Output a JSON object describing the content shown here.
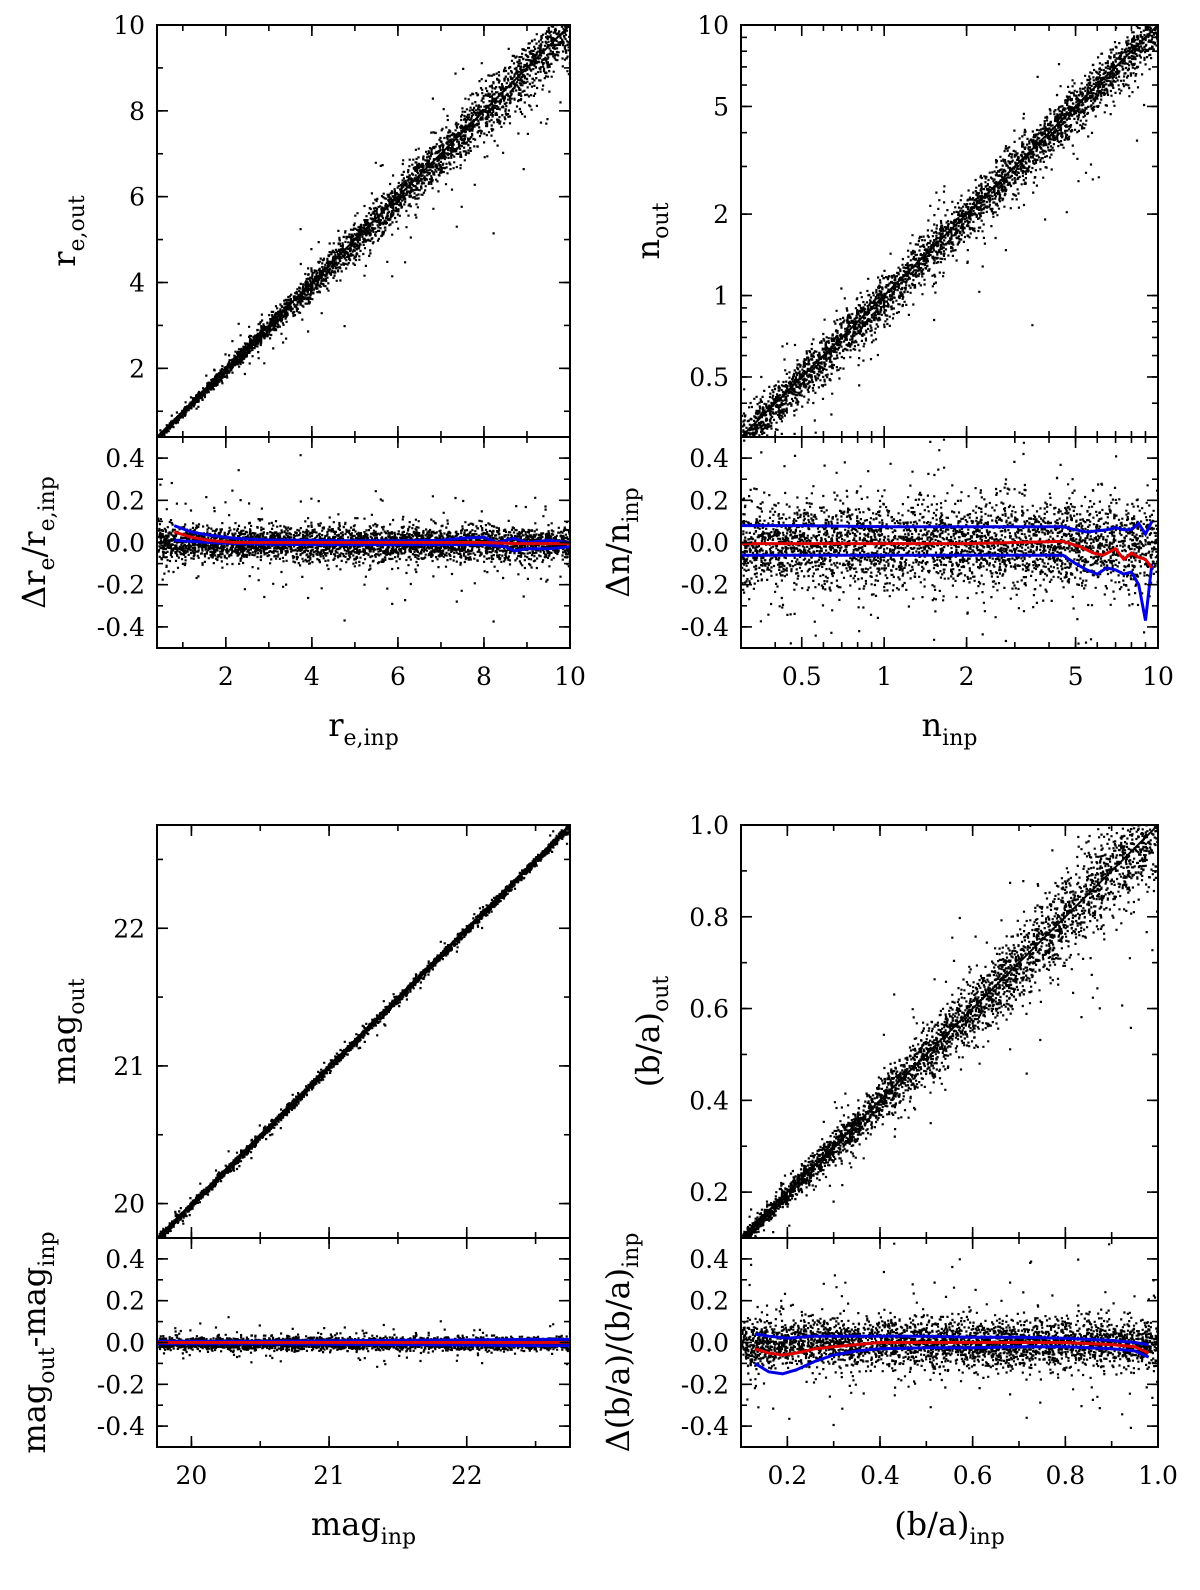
{
  "colors": {
    "points": "#000000",
    "median": "#e00000",
    "scatter_band": "#0000e0",
    "identity": "#000000"
  },
  "chart_data": [
    {
      "name": "re",
      "type": "scatter",
      "main": {
        "ylabel": {
          "base": "r",
          "sub": "e,out"
        },
        "xlim": [
          0.4,
          10
        ],
        "ylim": [
          0.4,
          10
        ],
        "yticks": [
          2,
          4,
          6,
          8,
          10
        ],
        "ytick_labels": [
          "2",
          "4",
          "6",
          "8",
          "10"
        ],
        "log": false,
        "identity_line": true,
        "n_points": 3500,
        "scatter_sigma": 0.04,
        "relative_sigma": true
      },
      "residual": {
        "ylabel": {
          "base": "Δr",
          "sub": "e",
          "mid": "/r",
          "sub2": "e,inp"
        },
        "ylim": [
          -0.5,
          0.5
        ],
        "yticks": [
          -0.4,
          -0.2,
          0.0,
          0.2,
          0.4
        ],
        "ytick_labels": [
          "-0.4",
          "-0.2",
          "0.0",
          "0.2",
          "0.4"
        ],
        "median": {
          "x": [
            0.8,
            1.2,
            1.6,
            2.2,
            3,
            4,
            5,
            6,
            7,
            8,
            8.7,
            9.5,
            10
          ],
          "y": [
            0.05,
            0.025,
            0.01,
            0.0,
            0.0,
            0.0,
            0.0,
            0.0,
            0.0,
            0.0,
            -0.005,
            -0.005,
            -0.005
          ]
        },
        "band_upper": {
          "x": [
            0.8,
            1.2,
            1.6,
            2.2,
            3,
            4,
            5,
            6,
            7,
            7.5,
            8,
            8.3,
            8.7,
            9,
            9.5,
            10
          ],
          "y": [
            0.08,
            0.05,
            0.035,
            0.02,
            0.012,
            0.01,
            0.008,
            0.008,
            0.01,
            0.02,
            0.025,
            0.0,
            0.02,
            0.0,
            0.01,
            0.0
          ]
        },
        "band_lower": {
          "x": [
            0.8,
            1.2,
            1.6,
            2.2,
            3,
            4,
            5,
            6,
            7,
            8,
            8.5,
            8.7,
            9,
            9.5,
            10
          ],
          "y": [
            0.01,
            0.005,
            0.0,
            -0.005,
            -0.008,
            -0.01,
            -0.01,
            -0.01,
            -0.01,
            -0.01,
            -0.02,
            -0.04,
            -0.03,
            -0.03,
            -0.02
          ]
        }
      },
      "xlabel": {
        "base": "r",
        "sub": "e,inp"
      },
      "xticks": [
        2,
        4,
        6,
        8,
        10
      ],
      "xtick_labels": [
        "2",
        "4",
        "6",
        "8",
        "10"
      ]
    },
    {
      "name": "n",
      "type": "scatter",
      "main": {
        "ylabel": {
          "base": "n",
          "sub": "out"
        },
        "xlim": [
          0.3,
          10
        ],
        "ylim": [
          0.3,
          10
        ],
        "yticks": [
          0.5,
          1,
          2,
          5,
          10
        ],
        "ytick_labels": [
          "0.5",
          "1",
          "2",
          "5",
          "10"
        ],
        "log": true,
        "identity_line": true,
        "n_points": 3500,
        "scatter_sigma": 0.1,
        "relative_sigma": true
      },
      "residual": {
        "ylabel": {
          "base": "Δn",
          "sub": "",
          "mid": "/n",
          "sub2": "inp"
        },
        "ylim": [
          -0.5,
          0.5
        ],
        "yticks": [
          -0.4,
          -0.2,
          0.0,
          0.2,
          0.4
        ],
        "ytick_labels": [
          "-0.4",
          "-0.2",
          "0.0",
          "0.2",
          "0.4"
        ],
        "median": {
          "x": [
            0.3,
            0.5,
            1,
            2,
            3,
            4.5,
            5.2,
            5.8,
            6.3,
            7,
            7.5,
            8,
            8.5,
            9,
            9.5
          ],
          "y": [
            -0.005,
            -0.005,
            -0.005,
            -0.005,
            0.0,
            0.005,
            -0.02,
            -0.05,
            -0.06,
            -0.03,
            -0.08,
            -0.05,
            -0.07,
            -0.08,
            -0.12
          ]
        },
        "band_upper": {
          "x": [
            0.3,
            0.5,
            1,
            2,
            3,
            4.5,
            5,
            5.5,
            6,
            6.5,
            7,
            7.5,
            8,
            8.5,
            9,
            9.5
          ],
          "y": [
            0.08,
            0.08,
            0.075,
            0.075,
            0.075,
            0.075,
            0.06,
            0.05,
            0.055,
            0.06,
            0.07,
            0.06,
            0.06,
            0.09,
            0.04,
            0.1
          ]
        },
        "band_lower": {
          "x": [
            0.3,
            0.5,
            1,
            2,
            3,
            4.5,
            5,
            5.5,
            6,
            6.5,
            7,
            7.5,
            8,
            8.5,
            9,
            9.5
          ],
          "y": [
            -0.06,
            -0.06,
            -0.06,
            -0.06,
            -0.06,
            -0.06,
            -0.1,
            -0.13,
            -0.15,
            -0.12,
            -0.13,
            -0.15,
            -0.14,
            -0.2,
            -0.37,
            -0.1
          ]
        }
      },
      "xlabel": {
        "base": "n",
        "sub": "inp"
      },
      "xticks": [
        0.5,
        1,
        2,
        5,
        10
      ],
      "xtick_labels": [
        "0.5",
        "1",
        "2",
        "5",
        "10"
      ]
    },
    {
      "name": "mag",
      "type": "scatter",
      "main": {
        "ylabel": {
          "base": "mag",
          "sub": "out"
        },
        "xlim": [
          19.75,
          22.75
        ],
        "ylim": [
          19.75,
          22.75
        ],
        "yticks": [
          20,
          21,
          22
        ],
        "ytick_labels": [
          "20",
          "21",
          "22"
        ],
        "log": false,
        "identity_line": true,
        "n_points": 3000,
        "scatter_sigma": 0.015,
        "relative_sigma": false
      },
      "residual": {
        "ylabel": {
          "base": "mag",
          "sub": "out",
          "mid": "-mag",
          "sub2": "inp"
        },
        "ylim": [
          -0.5,
          0.5
        ],
        "yticks": [
          -0.4,
          -0.2,
          0.0,
          0.2,
          0.4
        ],
        "ytick_labels": [
          "-0.4",
          "-0.2",
          "0.0",
          "0.2",
          "0.4"
        ],
        "median": {
          "x": [
            19.75,
            20.5,
            21,
            21.5,
            22,
            22.5,
            22.75
          ],
          "y": [
            0.0,
            0.0,
            0.0,
            0.0,
            0.0,
            0.0,
            0.0
          ]
        },
        "band_upper": {
          "x": [
            19.75,
            20.5,
            21,
            21.5,
            22,
            22.5,
            22.75
          ],
          "y": [
            0.006,
            0.006,
            0.008,
            0.01,
            0.012,
            0.015,
            0.015
          ]
        },
        "band_lower": {
          "x": [
            19.75,
            20.5,
            21,
            21.5,
            22,
            22.5,
            22.75
          ],
          "y": [
            -0.006,
            -0.006,
            -0.008,
            -0.01,
            -0.012,
            -0.015,
            -0.015
          ]
        }
      },
      "xlabel": {
        "base": "mag",
        "sub": "inp"
      },
      "xticks": [
        20,
        21,
        22
      ],
      "xtick_labels": [
        "20",
        "21",
        "22"
      ]
    },
    {
      "name": "ba",
      "type": "scatter",
      "main": {
        "ylabel": {
          "base": "(b/a)",
          "sub": "out"
        },
        "xlim": [
          0.1,
          1.0
        ],
        "ylim": [
          0.1,
          1.0
        ],
        "yticks": [
          0.2,
          0.4,
          0.6,
          0.8,
          1.0
        ],
        "ytick_labels": [
          "0.2",
          "0.4",
          "0.6",
          "0.8",
          "1.0"
        ],
        "log": false,
        "identity_line": true,
        "n_points": 3500,
        "scatter_sigma": 0.06,
        "relative_sigma": true
      },
      "residual": {
        "ylabel": {
          "base": "Δ(b/a)",
          "sub": "",
          "mid": "/(b/a)",
          "sub2": "inp"
        },
        "ylim": [
          -0.5,
          0.5
        ],
        "yticks": [
          -0.4,
          -0.2,
          0.0,
          0.2,
          0.4
        ],
        "ytick_labels": [
          "-0.4",
          "-0.2",
          "0.0",
          "0.2",
          "0.4"
        ],
        "median": {
          "x": [
            0.13,
            0.16,
            0.19,
            0.22,
            0.26,
            0.3,
            0.35,
            0.4,
            0.5,
            0.6,
            0.7,
            0.8,
            0.9,
            0.95,
            0.98
          ],
          "y": [
            -0.03,
            -0.05,
            -0.06,
            -0.05,
            -0.03,
            -0.02,
            -0.01,
            0.0,
            0.0,
            0.0,
            0.0,
            0.0,
            -0.01,
            -0.02,
            -0.05
          ]
        },
        "band_upper": {
          "x": [
            0.13,
            0.16,
            0.2,
            0.25,
            0.3,
            0.4,
            0.5,
            0.6,
            0.7,
            0.8,
            0.9,
            0.95,
            0.98
          ],
          "y": [
            0.04,
            0.03,
            0.02,
            0.03,
            0.03,
            0.03,
            0.03,
            0.025,
            0.025,
            0.02,
            0.01,
            0.0,
            -0.01
          ]
        },
        "band_lower": {
          "x": [
            0.13,
            0.16,
            0.19,
            0.22,
            0.26,
            0.3,
            0.35,
            0.4,
            0.5,
            0.6,
            0.7,
            0.8,
            0.9,
            0.95,
            0.98
          ],
          "y": [
            -0.1,
            -0.14,
            -0.15,
            -0.13,
            -0.09,
            -0.06,
            -0.04,
            -0.03,
            -0.025,
            -0.025,
            -0.02,
            -0.02,
            -0.03,
            -0.04,
            -0.07
          ]
        }
      },
      "xlabel": {
        "base": "(b/a)",
        "sub": "inp"
      },
      "xticks": [
        0.2,
        0.4,
        0.6,
        0.8,
        1.0
      ],
      "xtick_labels": [
        "0.2",
        "0.4",
        "0.6",
        "0.8",
        "1.0"
      ]
    }
  ]
}
